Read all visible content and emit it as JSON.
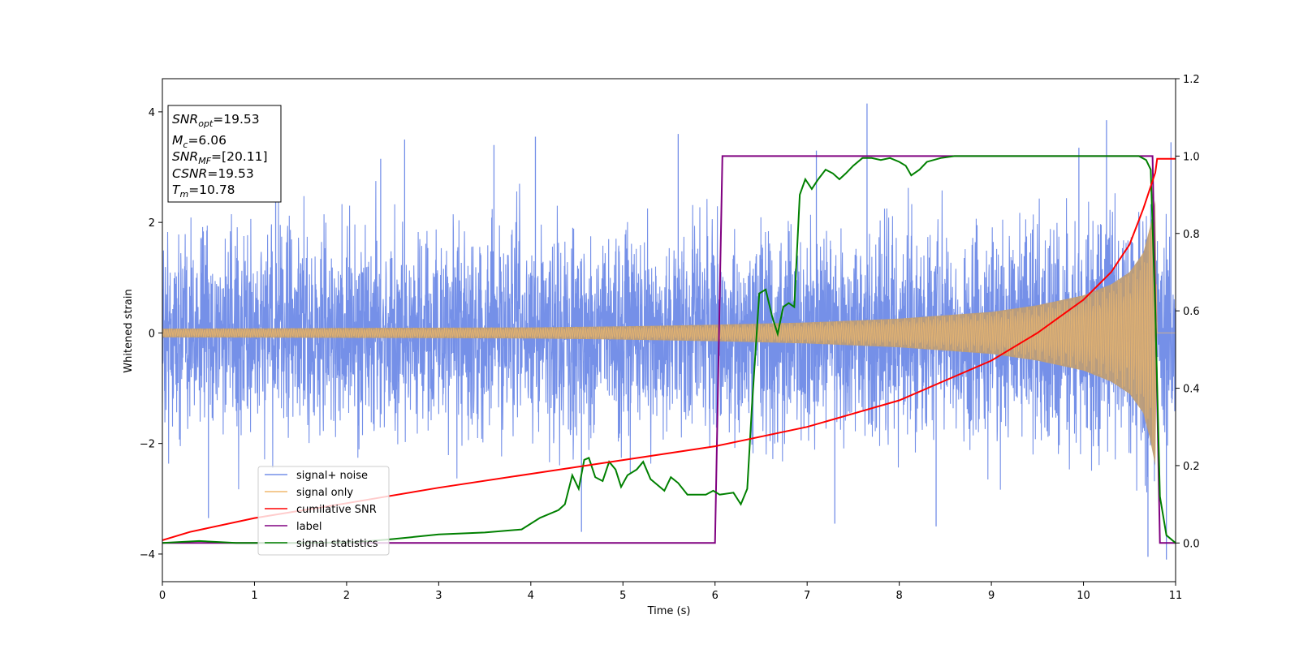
{
  "chart_data": {
    "type": "line",
    "xlabel": "Time (s)",
    "ylabel": "Whitened strain",
    "xlim": [
      0,
      11
    ],
    "ylim": [
      -4.5,
      4.6
    ],
    "y2lim": [
      -0.1,
      1.2
    ],
    "xticks": [
      "0",
      "1",
      "2",
      "3",
      "4",
      "5",
      "6",
      "7",
      "8",
      "9",
      "10",
      "11"
    ],
    "yticks": [
      "−4",
      "−2",
      "0",
      "2",
      "4"
    ],
    "y2ticks": [
      "0.0",
      "0.2",
      "0.4",
      "0.6",
      "0.8",
      "1.0",
      "1.2"
    ],
    "info_box": {
      "snr_opt": "=19.53",
      "mc": "=6.06",
      "snr_mf": "=[20.11]",
      "csnr": "=19.53",
      "tm": "=10.78"
    },
    "legend": {
      "placement": "lower-left",
      "items": [
        "signal+ noise",
        "signal only",
        "cumilative SNR",
        "label",
        "signal statistics"
      ]
    },
    "colors": {
      "signal_noise": "#7590e8",
      "signal_only": "#f0b96e",
      "signal_only_overlap": "#bc9d78",
      "cumulative_snr": "#ff0000",
      "label": "#800080",
      "signal_statistics": "#008000"
    },
    "series": [
      {
        "name": "signal+ noise",
        "axis": "left",
        "noise_envelope_typical": 1.6,
        "extreme_peaks": [
          {
            "x": 1.23,
            "y": 3.05
          },
          {
            "x": 2.37,
            "y": 3.15
          },
          {
            "x": 2.63,
            "y": 3.5
          },
          {
            "x": 3.6,
            "y": 3.4
          },
          {
            "x": 4.05,
            "y": 3.55
          },
          {
            "x": 5.6,
            "y": 3.6
          },
          {
            "x": 7.65,
            "y": 4.15
          },
          {
            "x": 7.1,
            "y": 3.3
          },
          {
            "x": 9.95,
            "y": 3.35
          },
          {
            "x": 10.25,
            "y": 3.85
          },
          {
            "x": 10.95,
            "y": 3.45
          },
          {
            "x": 0.5,
            "y": -3.35
          },
          {
            "x": 4.55,
            "y": -3.6
          },
          {
            "x": 7.3,
            "y": -3.45
          },
          {
            "x": 8.4,
            "y": -3.5
          },
          {
            "x": 10.7,
            "y": -4.05
          },
          {
            "x": 10.9,
            "y": -4.1
          }
        ]
      },
      {
        "name": "signal only",
        "axis": "left",
        "envelope": [
          {
            "x": 0,
            "y": 0.08
          },
          {
            "x": 2,
            "y": 0.09
          },
          {
            "x": 4,
            "y": 0.1
          },
          {
            "x": 5,
            "y": 0.12
          },
          {
            "x": 6,
            "y": 0.15
          },
          {
            "x": 7,
            "y": 0.19
          },
          {
            "x": 8,
            "y": 0.26
          },
          {
            "x": 9,
            "y": 0.38
          },
          {
            "x": 9.5,
            "y": 0.5
          },
          {
            "x": 10,
            "y": 0.68
          },
          {
            "x": 10.3,
            "y": 0.88
          },
          {
            "x": 10.5,
            "y": 1.1
          },
          {
            "x": 10.65,
            "y": 1.45
          },
          {
            "x": 10.72,
            "y": 1.9
          },
          {
            "x": 10.78,
            "y": 2.4
          },
          {
            "x": 10.8,
            "y": 0
          }
        ]
      },
      {
        "name": "cumilative SNR",
        "axis": "left",
        "points": [
          {
            "x": 0,
            "y": -3.75
          },
          {
            "x": 0.3,
            "y": -3.6
          },
          {
            "x": 1,
            "y": -3.35
          },
          {
            "x": 2,
            "y": -3.08
          },
          {
            "x": 3,
            "y": -2.8
          },
          {
            "x": 4,
            "y": -2.55
          },
          {
            "x": 5,
            "y": -2.3
          },
          {
            "x": 6,
            "y": -2.05
          },
          {
            "x": 7,
            "y": -1.7
          },
          {
            "x": 8,
            "y": -1.22
          },
          {
            "x": 9,
            "y": -0.5
          },
          {
            "x": 9.5,
            "y": 0.0
          },
          {
            "x": 10,
            "y": 0.6
          },
          {
            "x": 10.3,
            "y": 1.1
          },
          {
            "x": 10.5,
            "y": 1.6
          },
          {
            "x": 10.65,
            "y": 2.25
          },
          {
            "x": 10.78,
            "y": 2.9
          },
          {
            "x": 10.8,
            "y": 3.15
          },
          {
            "x": 11,
            "y": 3.15
          }
        ]
      },
      {
        "name": "label",
        "axis": "right",
        "points": [
          {
            "x": 0,
            "y": 0
          },
          {
            "x": 6.0,
            "y": 0
          },
          {
            "x": 6.08,
            "y": 1
          },
          {
            "x": 10.75,
            "y": 1
          },
          {
            "x": 10.83,
            "y": 0
          },
          {
            "x": 11,
            "y": 0
          }
        ]
      },
      {
        "name": "signal statistics",
        "axis": "right",
        "points": [
          {
            "x": 0,
            "y": 0
          },
          {
            "x": 0.4,
            "y": 0.005
          },
          {
            "x": 0.8,
            "y": 0.0
          },
          {
            "x": 1.5,
            "y": 0.0
          },
          {
            "x": 2.1,
            "y": 0.002
          },
          {
            "x": 2.5,
            "y": 0.01
          },
          {
            "x": 3.0,
            "y": 0.022
          },
          {
            "x": 3.5,
            "y": 0.027
          },
          {
            "x": 3.9,
            "y": 0.035
          },
          {
            "x": 4.1,
            "y": 0.065
          },
          {
            "x": 4.3,
            "y": 0.085
          },
          {
            "x": 4.37,
            "y": 0.1
          },
          {
            "x": 4.45,
            "y": 0.175
          },
          {
            "x": 4.52,
            "y": 0.14
          },
          {
            "x": 4.58,
            "y": 0.215
          },
          {
            "x": 4.63,
            "y": 0.22
          },
          {
            "x": 4.7,
            "y": 0.17
          },
          {
            "x": 4.78,
            "y": 0.16
          },
          {
            "x": 4.85,
            "y": 0.21
          },
          {
            "x": 4.92,
            "y": 0.19
          },
          {
            "x": 4.98,
            "y": 0.145
          },
          {
            "x": 5.05,
            "y": 0.175
          },
          {
            "x": 5.15,
            "y": 0.19
          },
          {
            "x": 5.22,
            "y": 0.21
          },
          {
            "x": 5.3,
            "y": 0.165
          },
          {
            "x": 5.35,
            "y": 0.155
          },
          {
            "x": 5.45,
            "y": 0.135
          },
          {
            "x": 5.52,
            "y": 0.17
          },
          {
            "x": 5.6,
            "y": 0.155
          },
          {
            "x": 5.7,
            "y": 0.125
          },
          {
            "x": 5.9,
            "y": 0.125
          },
          {
            "x": 5.98,
            "y": 0.135
          },
          {
            "x": 6.05,
            "y": 0.125
          },
          {
            "x": 6.2,
            "y": 0.13
          },
          {
            "x": 6.28,
            "y": 0.1
          },
          {
            "x": 6.35,
            "y": 0.14
          },
          {
            "x": 6.4,
            "y": 0.35
          },
          {
            "x": 6.48,
            "y": 0.645
          },
          {
            "x": 6.55,
            "y": 0.655
          },
          {
            "x": 6.62,
            "y": 0.585
          },
          {
            "x": 6.68,
            "y": 0.54
          },
          {
            "x": 6.74,
            "y": 0.61
          },
          {
            "x": 6.8,
            "y": 0.62
          },
          {
            "x": 6.86,
            "y": 0.61
          },
          {
            "x": 6.92,
            "y": 0.9
          },
          {
            "x": 6.98,
            "y": 0.94
          },
          {
            "x": 7.05,
            "y": 0.915
          },
          {
            "x": 7.12,
            "y": 0.94
          },
          {
            "x": 7.2,
            "y": 0.965
          },
          {
            "x": 7.28,
            "y": 0.955
          },
          {
            "x": 7.35,
            "y": 0.94
          },
          {
            "x": 7.42,
            "y": 0.955
          },
          {
            "x": 7.5,
            "y": 0.975
          },
          {
            "x": 7.6,
            "y": 0.995
          },
          {
            "x": 7.7,
            "y": 0.995
          },
          {
            "x": 7.8,
            "y": 0.99
          },
          {
            "x": 7.9,
            "y": 0.995
          },
          {
            "x": 8.0,
            "y": 0.985
          },
          {
            "x": 8.07,
            "y": 0.975
          },
          {
            "x": 8.13,
            "y": 0.95
          },
          {
            "x": 8.22,
            "y": 0.965
          },
          {
            "x": 8.3,
            "y": 0.985
          },
          {
            "x": 8.45,
            "y": 0.995
          },
          {
            "x": 8.6,
            "y": 1.0
          },
          {
            "x": 10.6,
            "y": 1.0
          },
          {
            "x": 10.68,
            "y": 0.99
          },
          {
            "x": 10.73,
            "y": 0.965
          },
          {
            "x": 10.78,
            "y": 0.6
          },
          {
            "x": 10.83,
            "y": 0.12
          },
          {
            "x": 10.9,
            "y": 0.02
          },
          {
            "x": 11,
            "y": 0.0
          }
        ]
      }
    ]
  }
}
